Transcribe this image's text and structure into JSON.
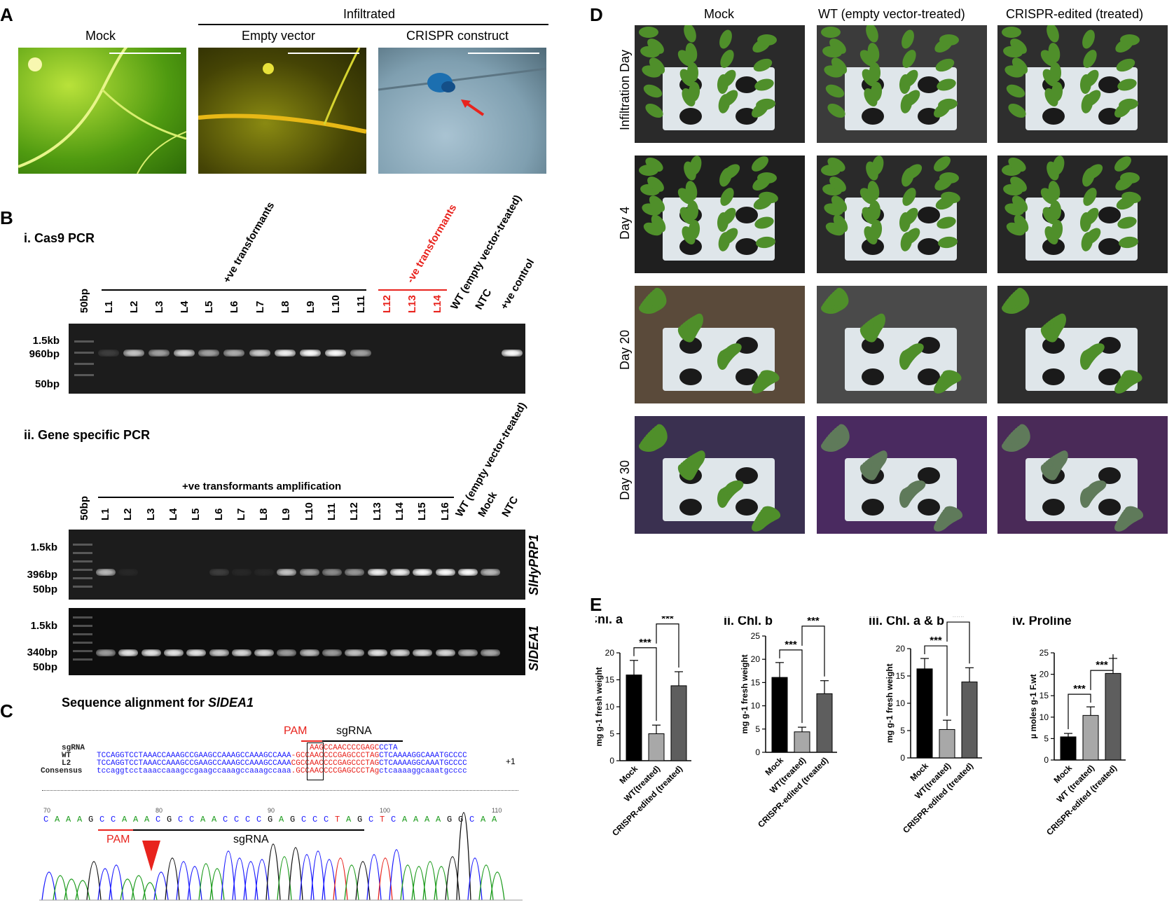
{
  "panel_a": {
    "letter": "A",
    "infiltrated_label": "Infiltrated",
    "captions": [
      "Mock",
      "Empty vector",
      "CRISPR construct"
    ]
  },
  "panel_b": {
    "letter": "B",
    "sub_i": "i. Cas9 PCR",
    "sub_ii": "ii. Gene specific PCR",
    "pos_group": "+ve transformants",
    "neg_group": "-ve transformants",
    "pos_amp_group": "+ve transformants amplification",
    "ladder": "50bp",
    "cas9_lanes_black": [
      "L1",
      "L2",
      "L3",
      "L4",
      "L5",
      "L6",
      "L7",
      "L8",
      "L9",
      "L10",
      "L11"
    ],
    "cas9_lanes_red": [
      "L12",
      "L13",
      "L14"
    ],
    "cas9_lanes_tail": [
      "WT (empty vector-treated)",
      "NTC",
      "+ve control"
    ],
    "cas9_sizes": [
      "1.5kb",
      "960bp",
      "50bp"
    ],
    "gene_lanes": [
      "L1",
      "L2",
      "L3",
      "L4",
      "L5",
      "L6",
      "L7",
      "L8",
      "L9",
      "L10",
      "L11",
      "L12",
      "L13",
      "L14",
      "L15",
      "L16"
    ],
    "gene_lanes_tail": [
      "WT (empty vector-treated)",
      "Mock",
      "NTC"
    ],
    "prp_sizes": [
      "1.5kb",
      "396bp",
      "50bp"
    ],
    "dea_sizes": [
      "1.5kb",
      "340bp",
      "50bp"
    ],
    "gene1": "SlHyPRP1",
    "gene2": "SlDEA1"
  },
  "panel_c": {
    "letter": "C",
    "title_prefix": "Sequence alignment for ",
    "title_gene": "SlDEA1",
    "pam": "PAM",
    "sgrna": "sgRNA",
    "rows": [
      {
        "name": "sgRNA",
        "seq": "                                              AAGCCAACCCCGAGCCCTA"
      },
      {
        "name": "WT",
        "seq": "TCCAGGTCCTAAACCAAAGCCGAAGCCAAAGCCAAAGCCAAA-GCCAACCCCGAGCCCTAGCTCAAAAGGCAAATGCCCC"
      },
      {
        "name": "L2",
        "seq": "TCCAGGTCCTAAACCAAAGCCGAAGCCAAAGCCAAAGCCAAACGCCAACCCCGAGCCCTAGCTCAAAAGGCAAATGCCCC"
      },
      {
        "name": "Consensus",
        "seq": "tccaggtcctaaaccaaagccgaagccaaagccaaagccaaa.GCCAACCCCGAGCCCTAgctcaaaaggcaaatgcccc"
      }
    ],
    "plus_one": "+1",
    "trace_positions": [
      "70",
      "80",
      "90",
      "100",
      "110"
    ],
    "trace_bases": [
      "C",
      "A",
      "A",
      "A",
      "G",
      "C",
      "C",
      "A",
      "A",
      "A",
      "C",
      "G",
      "C",
      "C",
      "A",
      "A",
      "C",
      "C",
      "C",
      "C",
      "G",
      "A",
      "G",
      "C",
      "C",
      "C",
      "T",
      "A",
      "G",
      "C",
      "T",
      "C",
      "A",
      "A",
      "A",
      "A",
      "G",
      "G",
      "C",
      "A",
      "A"
    ]
  },
  "panel_d": {
    "letter": "D",
    "columns": [
      "Mock",
      "WT (empty vector-treated)",
      "CRISPR-edited (treated)"
    ],
    "rows": [
      "Infiltration Day",
      "Day 4",
      "Day 20",
      "Day 30"
    ]
  },
  "panel_e": {
    "letter": "E",
    "sig": "***"
  },
  "chart_data": [
    {
      "type": "bar",
      "title": "i. Chl. a",
      "ylabel": "mg g-1 fresh weight",
      "categories": [
        "Mock",
        "WT(treated)",
        "CRISPR-edited (treated)"
      ],
      "values": [
        15.9,
        5.0,
        13.9
      ],
      "errors": [
        2.7,
        1.6,
        2.6
      ],
      "ylim": [
        0,
        20
      ],
      "yticks": [
        "0",
        "5",
        "10",
        "15",
        "20"
      ],
      "colors": [
        "#000000",
        "#a8a8a8",
        "#5e5e5e"
      ]
    },
    {
      "type": "bar",
      "title": "ii. Chl. b",
      "ylabel": "mg g-1 fresh weight",
      "categories": [
        "Mock",
        "WT(treated)",
        "CRISPR-edited (treated)"
      ],
      "values": [
        16.1,
        4.4,
        12.6
      ],
      "errors": [
        3.2,
        1.0,
        2.8
      ],
      "ylim": [
        0,
        25
      ],
      "yticks": [
        "0",
        "5",
        "10",
        "15",
        "20",
        "25"
      ],
      "colors": [
        "#000000",
        "#a8a8a8",
        "#5e5e5e"
      ]
    },
    {
      "type": "bar",
      "title": "iii. Chl. a & b",
      "ylabel": "mg g-1 fresh weight",
      "categories": [
        "Mock",
        "WT(treated)",
        "CRISPR-edited (treated)"
      ],
      "values": [
        16.3,
        5.2,
        13.9
      ],
      "errors": [
        1.9,
        1.7,
        2.6
      ],
      "ylim": [
        0,
        20
      ],
      "yticks": [
        "0",
        "5",
        "10",
        "15",
        "20"
      ],
      "colors": [
        "#000000",
        "#a8a8a8",
        "#5e5e5e"
      ]
    },
    {
      "type": "bar",
      "title": "iv. Proline",
      "ylabel": "µ moles g-1 F.wt",
      "categories": [
        "Mock",
        "WT (treated)",
        "CRISPR-edited (treated)"
      ],
      "values": [
        5.4,
        10.4,
        20.2
      ],
      "errors": [
        0.8,
        2.0,
        3.5
      ],
      "ylim": [
        0,
        25
      ],
      "yticks": [
        "0",
        "5",
        "10",
        "15",
        "20",
        "25"
      ],
      "colors": [
        "#000000",
        "#a8a8a8",
        "#5e5e5e"
      ]
    }
  ],
  "colors": {
    "red": "#e8231d",
    "blue": "#1a1aff",
    "seqred": "#e8231d"
  }
}
